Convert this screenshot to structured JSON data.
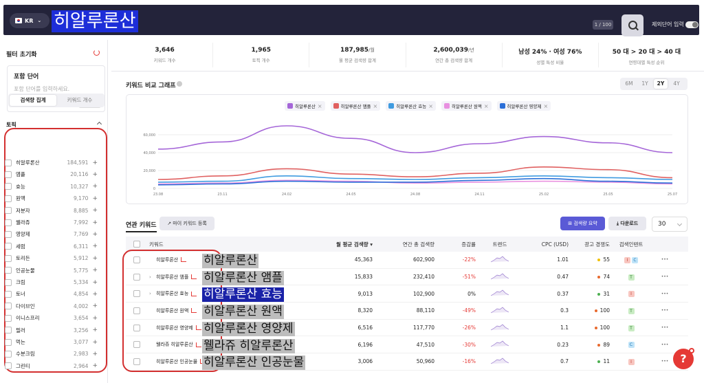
{
  "header": {
    "country": "KR",
    "search_value": "히알루론산",
    "page_count": "1 / 100",
    "exclude_label": "제외단어 입력"
  },
  "sidebar": {
    "filter_reset": "필터 초기화",
    "include_title": "포함 단어",
    "include_placeholder": "포함 단어를 입력하세요.",
    "apply": "적용",
    "topic_label": "토픽",
    "seg_volume": "검색량 집계",
    "seg_count": "키워드 개수",
    "topics": [
      {
        "name": "히알루론산",
        "count": "184,591"
      },
      {
        "name": "앰플",
        "count": "20,116"
      },
      {
        "name": "효능",
        "count": "10,327"
      },
      {
        "name": "원액",
        "count": "9,170"
      },
      {
        "name": "저분자",
        "count": "8,885"
      },
      {
        "name": "웰라쥬",
        "count": "7,992"
      },
      {
        "name": "영양제",
        "count": "7,769"
      },
      {
        "name": "세럼",
        "count": "6,311"
      },
      {
        "name": "토리든",
        "count": "5,912"
      },
      {
        "name": "인공눈물",
        "count": "5,775"
      },
      {
        "name": "크림",
        "count": "5,334"
      },
      {
        "name": "토너",
        "count": "4,854"
      },
      {
        "name": "다이브인",
        "count": "4,002"
      },
      {
        "name": "이니스프리",
        "count": "3,654"
      },
      {
        "name": "필러",
        "count": "3,256"
      },
      {
        "name": "먹는",
        "count": "3,077"
      },
      {
        "name": "수분크림",
        "count": "2,983"
      },
      {
        "name": "그린티",
        "count": "2,964"
      }
    ]
  },
  "stats": [
    {
      "value": "3,646",
      "unit": "",
      "label": "키워드 개수"
    },
    {
      "value": "1,965",
      "unit": "",
      "label": "토픽 개수"
    },
    {
      "value": "187,985",
      "unit": "/월",
      "label": "월 평균 검색량 합계"
    },
    {
      "value": "2,600,039",
      "unit": "/년",
      "label": "연간 총 검색량 합계"
    },
    {
      "value": "남성 24% · 여성 76%",
      "unit": "",
      "label": "성별 특성 비율"
    },
    {
      "value": "50 대 > 20 대 > 40 대",
      "unit": "",
      "label": "연령대별 특성 순위"
    }
  ],
  "chart": {
    "title": "키워드 비교 그래프",
    "periods": [
      "6M",
      "1Y",
      "2Y",
      "4Y"
    ],
    "active_period": "2Y"
  },
  "chart_data": {
    "type": "line",
    "x": [
      "23.08",
      "23.11",
      "24.02",
      "24.05",
      "24.08",
      "24.11",
      "25.02",
      "25.05",
      "25.07"
    ],
    "ylim": [
      0,
      80000
    ],
    "yticks": [
      "0",
      "20,000",
      "40,000",
      "60,000"
    ],
    "series": [
      {
        "name": "히알루론산",
        "color": "#a566d8",
        "values": [
          44000,
          52000,
          70000,
          56000,
          40000,
          50000,
          58000,
          51000,
          40000
        ]
      },
      {
        "name": "히알루론산 앰플",
        "color": "#e06060",
        "values": [
          10000,
          14000,
          22000,
          16000,
          13000,
          17000,
          24000,
          21000,
          12000
        ]
      },
      {
        "name": "히알루론산 효능",
        "color": "#3f9be0",
        "values": [
          7000,
          8000,
          14000,
          11000,
          10000,
          12000,
          14000,
          12000,
          10000
        ]
      },
      {
        "name": "히알루론산 원액",
        "color": "#e890e0",
        "values": [
          5000,
          6000,
          9000,
          8000,
          6000,
          7000,
          8000,
          7000,
          5000
        ]
      },
      {
        "name": "히알루론산 영양제",
        "color": "#2b6fd8",
        "values": [
          4000,
          5000,
          8000,
          7000,
          7000,
          9000,
          11000,
          8000,
          6000
        ]
      }
    ]
  },
  "related": {
    "title": "연관 키워드",
    "my_keyword": "마이 키워드 등록",
    "summary": "검색량 요약",
    "download": "다운로드",
    "page_size": "30",
    "headers": [
      "키워드",
      "월 평균 검색량 ▾",
      "연간 총 검색량",
      "증감률",
      "트렌드",
      "CPC (USD)",
      "광고 경쟁도",
      "검색인텐트"
    ],
    "rows": [
      {
        "kw": "히알루론산",
        "overlay": "히알루론산",
        "sel": false,
        "chev": false,
        "monthly": "45,363",
        "annual": "602,900",
        "chg": "-22%",
        "cpc": "1.01",
        "comp": "55",
        "comp_color": "#f0c000",
        "intent": [
          "I",
          "C"
        ]
      },
      {
        "kw": "히알루론산 앰플",
        "overlay": "히알루론산 앰플",
        "sel": false,
        "chev": true,
        "monthly": "15,833",
        "annual": "232,410",
        "chg": "-51%",
        "cpc": "0.47",
        "comp": "74",
        "comp_color": "#e8692d",
        "intent": [
          "T"
        ]
      },
      {
        "kw": "히알루론산 효능",
        "overlay": "히알루론산 효능",
        "sel": true,
        "chev": true,
        "monthly": "9,013",
        "annual": "102,900",
        "chg": "0%",
        "cpc": "0.37",
        "comp": "31",
        "comp_color": "#4caf50",
        "intent": [
          "I"
        ]
      },
      {
        "kw": "히알루론산 원액",
        "overlay": "히알루론산 원액",
        "sel": false,
        "chev": false,
        "monthly": "8,320",
        "annual": "88,110",
        "chg": "-49%",
        "cpc": "0.3",
        "comp": "100",
        "comp_color": "#e8692d",
        "intent": [
          "T"
        ]
      },
      {
        "kw": "히알루론산 영양제",
        "overlay": "히알루론산 영양제",
        "sel": false,
        "chev": false,
        "monthly": "6,516",
        "annual": "117,770",
        "chg": "-26%",
        "cpc": "1.1",
        "comp": "100",
        "comp_color": "#e8692d",
        "intent": [
          "T"
        ]
      },
      {
        "kw": "웰라쥬 히알루론산",
        "overlay": "웰라쥬 히알루론산",
        "sel": false,
        "chev": false,
        "monthly": "6,196",
        "annual": "47,510",
        "chg": "-30%",
        "cpc": "0.23",
        "comp": "89",
        "comp_color": "#e8692d",
        "intent": [
          "C"
        ]
      },
      {
        "kw": "히알루론산 인공눈물",
        "overlay": "히알루론산 인공눈물",
        "sel": false,
        "chev": false,
        "monthly": "3,006",
        "annual": "50,960",
        "chg": "-16%",
        "cpc": "0.7",
        "comp": "11",
        "comp_color": "#4caf50",
        "intent": [
          "I"
        ]
      }
    ]
  },
  "colors": {
    "accent": "#5a5ad6",
    "highlight": "#1d2ed8",
    "outline": "#d32f2f"
  }
}
